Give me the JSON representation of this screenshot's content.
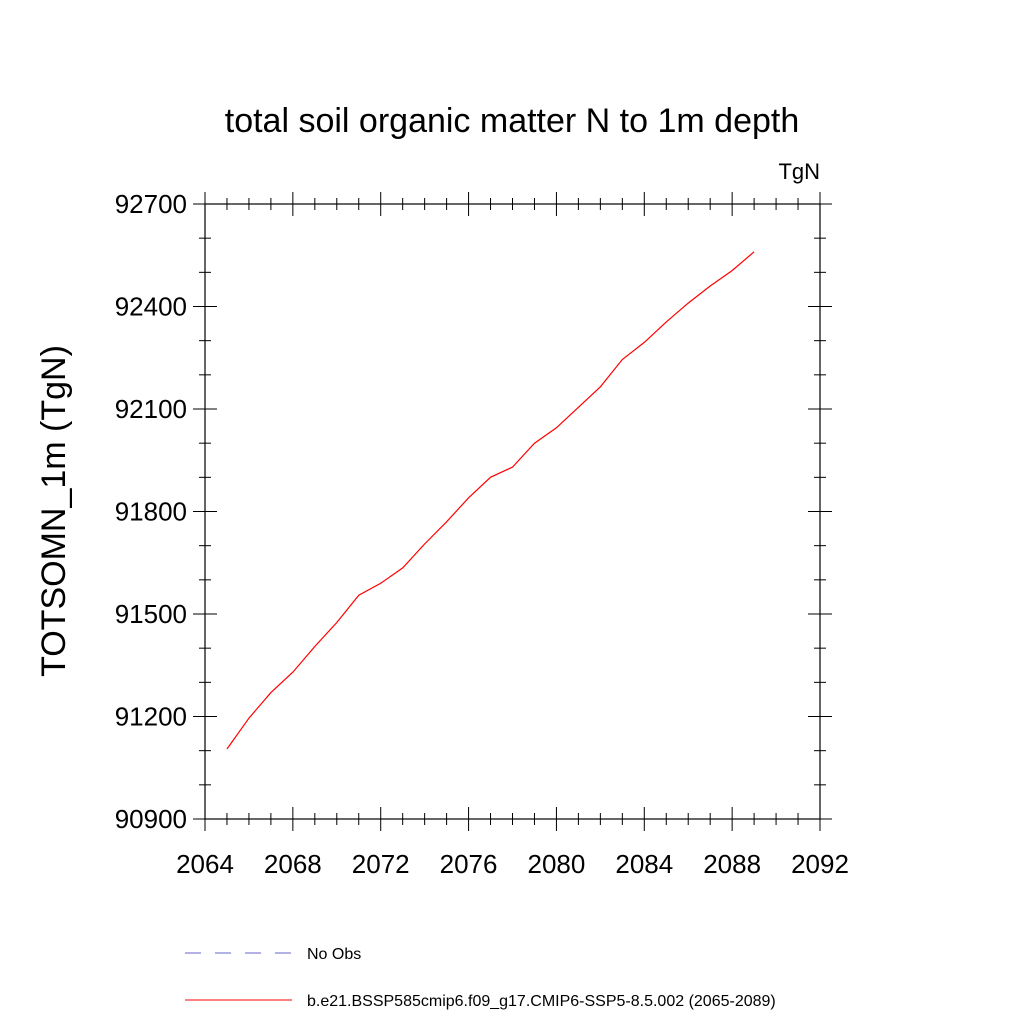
{
  "chart_data": {
    "type": "line",
    "title": "total soil organic matter N to 1m depth",
    "units": "TgN",
    "ylabel": "TOTSOMN_1m  (TgN)",
    "xlabel": "",
    "xlim": [
      2064,
      2092
    ],
    "ylim": [
      90900,
      92700
    ],
    "xticks": [
      2064,
      2068,
      2072,
      2076,
      2080,
      2084,
      2088,
      2092
    ],
    "yticks": [
      90900,
      91200,
      91500,
      91800,
      92100,
      92400,
      92700
    ],
    "x_minor_step": 1,
    "y_minor_step": 100,
    "legend_position": "bottom",
    "series": [
      {
        "name": "b.e21.BSSP585cmip6.f09_g17.CMIP6-SSP5-8.5.002 (2065-2089)",
        "color": "#ff0000",
        "dash": "solid",
        "x": [
          2065,
          2066,
          2067,
          2068,
          2069,
          2070,
          2071,
          2072,
          2073,
          2074,
          2075,
          2076,
          2077,
          2078,
          2079,
          2080,
          2081,
          2082,
          2083,
          2084,
          2085,
          2086,
          2087,
          2088,
          2089
        ],
        "y": [
          91105,
          91195,
          91270,
          91330,
          91405,
          91475,
          91555,
          91590,
          91635,
          91705,
          91770,
          91840,
          91900,
          91930,
          92000,
          92045,
          92105,
          92165,
          92245,
          92295,
          92355,
          92410,
          92460,
          92505,
          92560
        ]
      }
    ],
    "legend": [
      {
        "label": "No Obs",
        "color": "#6666cc",
        "dash": "dashed"
      },
      {
        "label": "b.e21.BSSP585cmip6.f09_g17.CMIP6-SSP5-8.5.002 (2065-2089)",
        "color": "#ff0000",
        "dash": "solid"
      }
    ]
  }
}
